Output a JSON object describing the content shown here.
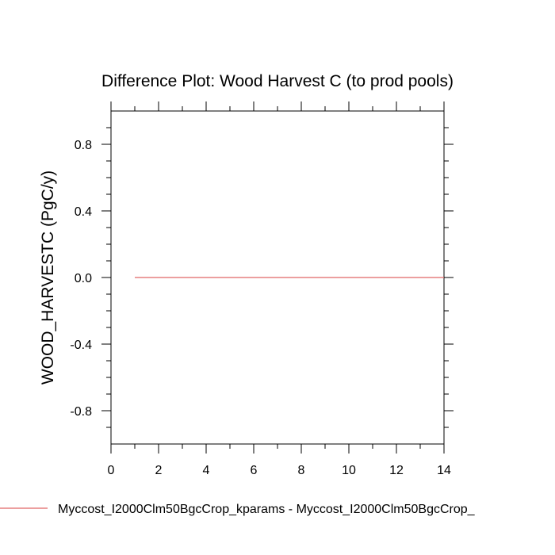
{
  "chart_data": {
    "type": "line",
    "title": "Difference Plot: Wood Harvest C (to prod pools)",
    "xlabel": "",
    "ylabel": "WOOD_HARVESTC  (PgC/y)",
    "xlim": [
      0,
      14
    ],
    "ylim": [
      -1,
      1
    ],
    "x_ticks": [
      0,
      2,
      4,
      6,
      8,
      10,
      12,
      14
    ],
    "x_tick_labels": [
      "0",
      "2",
      "4",
      "6",
      "8",
      "10",
      "12",
      "14"
    ],
    "y_ticks": [
      0.8,
      0.4,
      0.0,
      -0.4,
      -0.8
    ],
    "y_tick_labels": [
      "0.8",
      "0.4",
      "0.0",
      "-0.4",
      "-0.8"
    ],
    "grid": false,
    "legend_position": "bottom",
    "series": [
      {
        "name": "Myccost_I2000Clm50BgcCrop_kparams - Myccost_I2000Clm50BgcCrop_",
        "color": "#e06666",
        "x": [
          1,
          2,
          3,
          4,
          5,
          6,
          7,
          8,
          9,
          10,
          11,
          12,
          13,
          14
        ],
        "y": [
          0,
          0,
          0,
          0,
          0,
          0,
          0,
          0,
          0,
          0,
          0,
          0,
          0,
          0
        ]
      }
    ]
  }
}
